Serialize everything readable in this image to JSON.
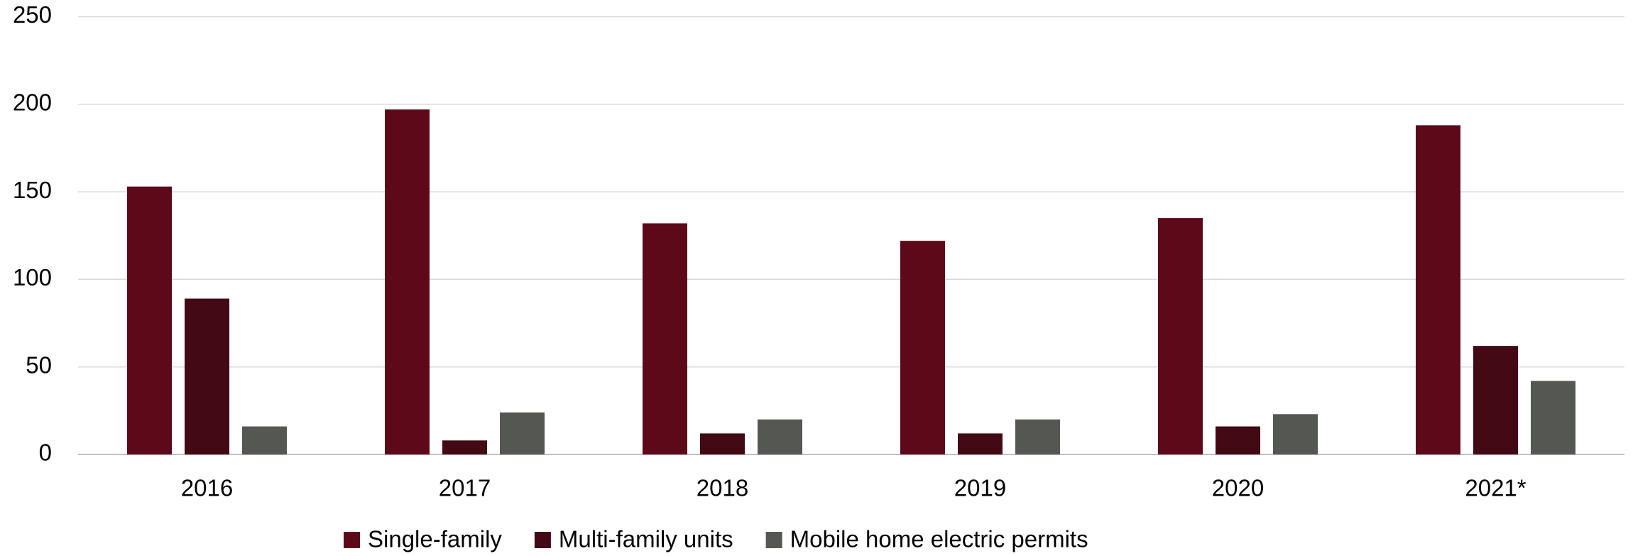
{
  "chart_data": {
    "type": "bar",
    "categories": [
      "2016",
      "2017",
      "2018",
      "2019",
      "2020",
      "2021*"
    ],
    "series": [
      {
        "name": "Single-family",
        "color": "#5c0a1a",
        "values": [
          153,
          197,
          132,
          122,
          135,
          188
        ]
      },
      {
        "name": "Multi-family units",
        "color": "#430a15",
        "values": [
          89,
          8,
          12,
          12,
          16,
          62
        ]
      },
      {
        "name": "Mobile home electric permits",
        "color": "#555753",
        "values": [
          16,
          24,
          20,
          20,
          23,
          42
        ]
      }
    ],
    "ylim": [
      0,
      250
    ],
    "yticks": [
      0,
      50,
      100,
      150,
      200,
      250
    ],
    "grid": true,
    "legend": "bottom"
  }
}
